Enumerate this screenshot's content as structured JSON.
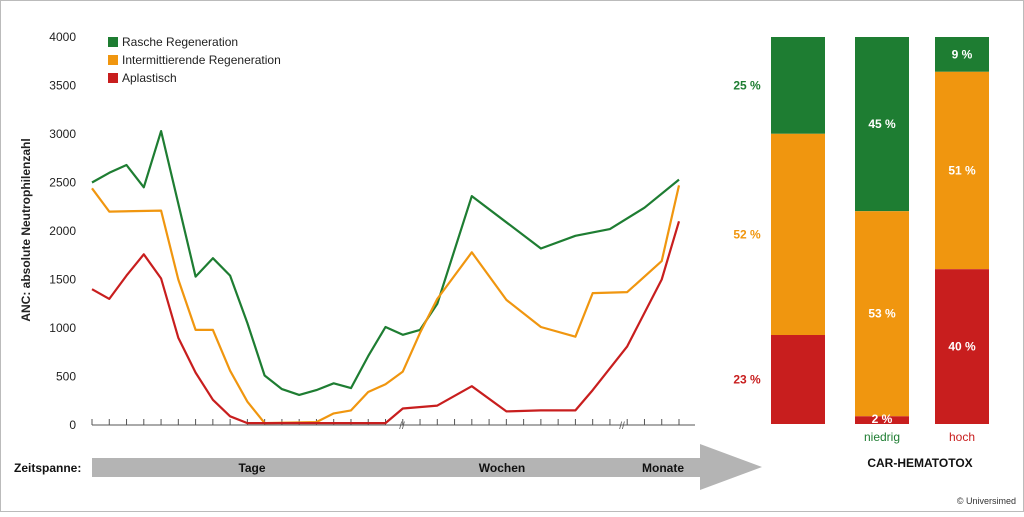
{
  "chart_data": [
    {
      "type": "line",
      "ylabel": "ANC: absolute Neutrophilenzahl",
      "ylim": [
        0,
        4000
      ],
      "y_ticks": [
        "0",
        "500",
        "1000",
        "1500",
        "2000",
        "2500",
        "3000",
        "3500",
        "4000"
      ],
      "legend_position": "top-left",
      "series": [
        {
          "name": "Rasche Regeneration",
          "color": "#1e7d32",
          "points": [
            [
              0,
              2500
            ],
            [
              1,
              2600
            ],
            [
              2,
              2680
            ],
            [
              3,
              2450
            ],
            [
              4,
              3030
            ],
            [
              6,
              1530
            ],
            [
              7,
              1720
            ],
            [
              8,
              1540
            ],
            [
              9,
              1050
            ],
            [
              10,
              510
            ],
            [
              11,
              370
            ],
            [
              12,
              310
            ],
            [
              13,
              360
            ],
            [
              14,
              430
            ],
            [
              15,
              380
            ],
            [
              16,
              710
            ],
            [
              17,
              1010
            ],
            [
              18,
              930
            ],
            [
              19,
              980
            ],
            [
              20,
              1250
            ],
            [
              22,
              2360
            ],
            [
              26,
              1820
            ],
            [
              28,
              1950
            ],
            [
              30,
              2020
            ],
            [
              32,
              2240
            ],
            [
              34,
              2530
            ]
          ]
        },
        {
          "name": "Intermittierende Regeneration",
          "color": "#f0960f",
          "points": [
            [
              0,
              2440
            ],
            [
              1,
              2200
            ],
            [
              4,
              2210
            ],
            [
              5,
              1500
            ],
            [
              6,
              980
            ],
            [
              7,
              980
            ],
            [
              8,
              560
            ],
            [
              9,
              240
            ],
            [
              10,
              20
            ],
            [
              13,
              30
            ],
            [
              14,
              120
            ],
            [
              15,
              150
            ],
            [
              16,
              340
            ],
            [
              17,
              420
            ],
            [
              18,
              550
            ],
            [
              19,
              950
            ],
            [
              20,
              1300
            ],
            [
              22,
              1780
            ],
            [
              24,
              1290
            ],
            [
              26,
              1010
            ],
            [
              28,
              910
            ],
            [
              29,
              1360
            ],
            [
              31,
              1370
            ],
            [
              33,
              1690
            ],
            [
              34,
              2470
            ]
          ]
        },
        {
          "name": "Aplastisch",
          "color": "#c81e1e",
          "points": [
            [
              0,
              1400
            ],
            [
              1,
              1300
            ],
            [
              2,
              1540
            ],
            [
              3,
              1760
            ],
            [
              4,
              1510
            ],
            [
              5,
              900
            ],
            [
              6,
              540
            ],
            [
              7,
              260
            ],
            [
              8,
              90
            ],
            [
              9,
              20
            ],
            [
              17,
              20
            ],
            [
              18,
              170
            ],
            [
              20,
              200
            ],
            [
              22,
              400
            ],
            [
              24,
              140
            ],
            [
              26,
              150
            ],
            [
              28,
              150
            ],
            [
              29,
              360
            ],
            [
              31,
              810
            ],
            [
              33,
              1500
            ],
            [
              34,
              2100
            ]
          ]
        }
      ]
    },
    {
      "type": "bar",
      "stacked": true,
      "categories": [
        "",
        "niedrig",
        "hoch"
      ],
      "group_label": "CAR-HEMATOTOX",
      "series": [
        {
          "name": "Rasche Regeneration",
          "color": "#1e7d32",
          "values": [
            25,
            45,
            9
          ],
          "labels": [
            "25 %",
            "45 %",
            "9 %"
          ]
        },
        {
          "name": "Intermittierende Regeneration",
          "color": "#f0960f",
          "values": [
            52,
            53,
            51
          ],
          "labels": [
            "52 %",
            "53 %",
            "51 %"
          ]
        },
        {
          "name": "Aplastisch",
          "color": "#c81e1e",
          "values": [
            23,
            2,
            40
          ],
          "labels": [
            "23 %",
            "2 %",
            "40 %"
          ]
        }
      ]
    }
  ],
  "timeline": {
    "label": "Zeitspanne:",
    "segments": [
      "Tage",
      "Wochen",
      "Monate"
    ]
  },
  "credit": "© Universimed"
}
